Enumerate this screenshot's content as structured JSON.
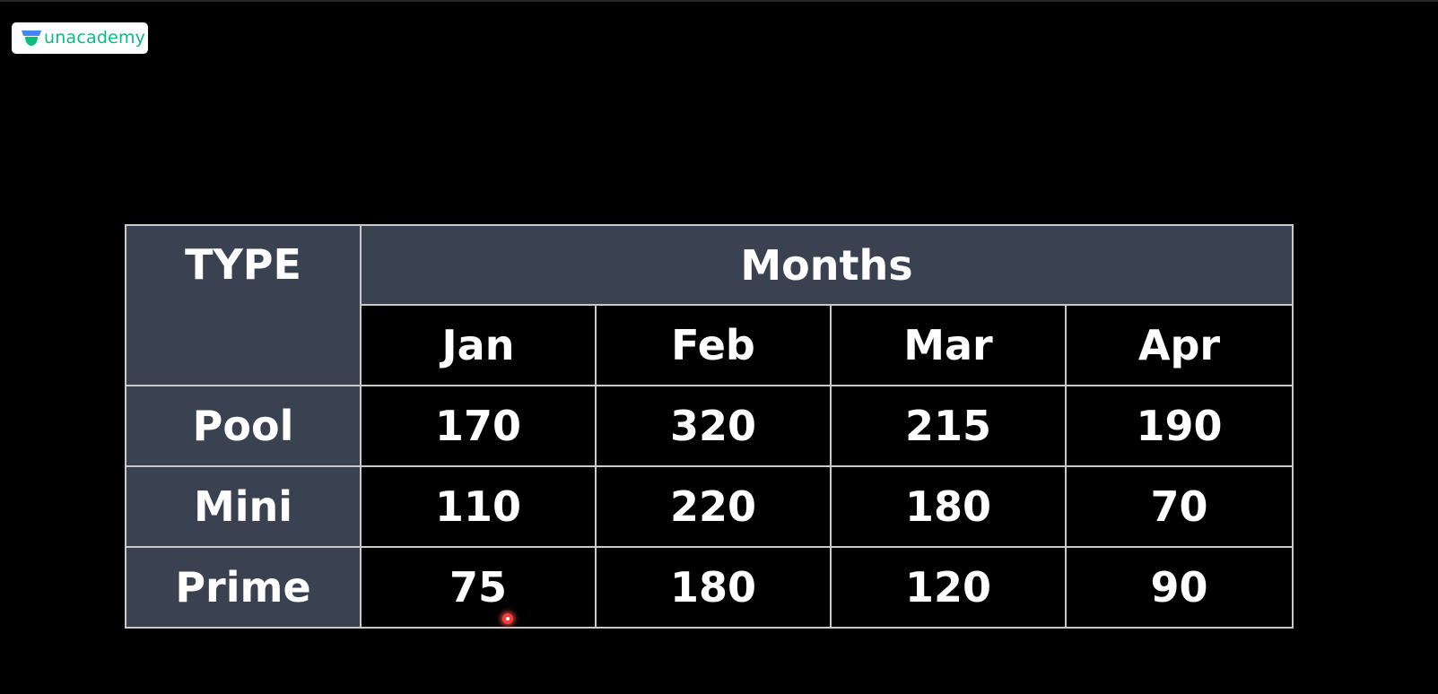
{
  "brand": {
    "logo_text": "unacademy",
    "accent_color": "#08bd80"
  },
  "table": {
    "corner_header": "TYPE",
    "group_header": "Months",
    "columns": [
      "Jan",
      "Feb",
      "Mar",
      "Apr"
    ],
    "rows": [
      {
        "label": "Pool",
        "values": [
          "170",
          "320",
          "215",
          "190"
        ]
      },
      {
        "label": "Mini",
        "values": [
          "110",
          "220",
          "180",
          "70"
        ]
      },
      {
        "label": "Prime",
        "values": [
          "75",
          "180",
          "120",
          "90"
        ]
      }
    ],
    "header_bg_color": "#3a4150"
  }
}
